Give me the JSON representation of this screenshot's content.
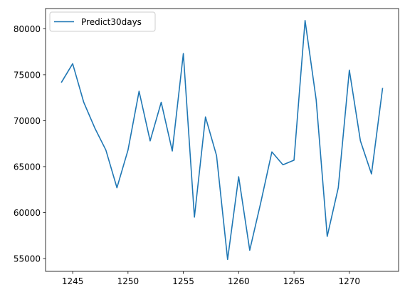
{
  "chart_data": {
    "type": "line",
    "title": "",
    "xlabel": "",
    "ylabel": "",
    "xlim": [
      1242.55,
      1274.45
    ],
    "ylim": [
      53600,
      82200
    ],
    "x_ticks": [
      1245,
      1250,
      1255,
      1260,
      1265,
      1270
    ],
    "x_tick_labels": [
      "1245",
      "1250",
      "1255",
      "1260",
      "1265",
      "1270"
    ],
    "y_ticks": [
      55000,
      60000,
      65000,
      70000,
      75000,
      80000
    ],
    "y_tick_labels": [
      "55000",
      "60000",
      "65000",
      "70000",
      "75000",
      "80000"
    ],
    "grid": false,
    "legend_position": "top-left",
    "series": [
      {
        "name": "Predict30days",
        "color": "#1f77b4",
        "x": [
          1244,
          1245,
          1246,
          1247,
          1248,
          1249,
          1250,
          1251,
          1252,
          1253,
          1254,
          1255,
          1256,
          1257,
          1258,
          1259,
          1260,
          1261,
          1262,
          1263,
          1264,
          1265,
          1266,
          1267,
          1268,
          1269,
          1270,
          1271,
          1272,
          1273
        ],
        "values": [
          74200,
          76200,
          72000,
          69200,
          66800,
          62700,
          66800,
          73200,
          67800,
          72000,
          66700,
          77300,
          59500,
          70400,
          66200,
          54900,
          63900,
          55900,
          61100,
          66600,
          65200,
          65700,
          80900,
          72300,
          57400,
          62700,
          75500,
          67800,
          64200,
          73500
        ]
      }
    ]
  }
}
